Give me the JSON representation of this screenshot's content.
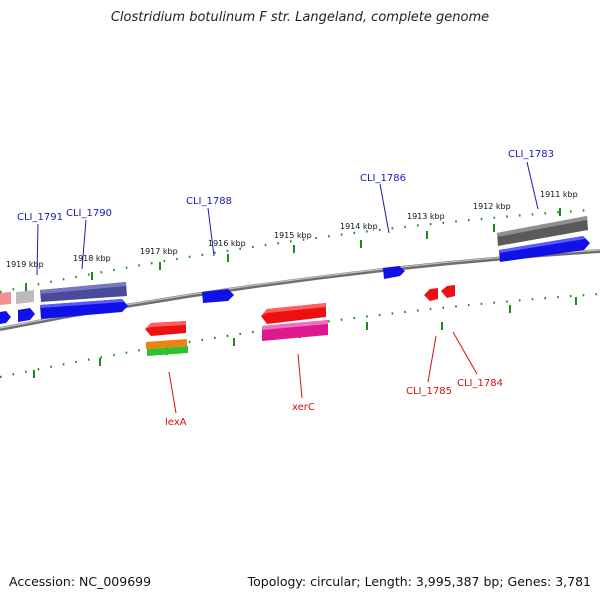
{
  "title": "Clostridium botulinum F str. Langeland, complete genome",
  "footer": {
    "accession": "Accession: NC_009699",
    "topology": "Topology: circular; Length: 3,995,387 bp; Genes: 3,781"
  },
  "kbp_labels": [
    "1911 kbp",
    "1912 kbp",
    "1913 kbp",
    "1914 kbp",
    "1915 kbp",
    "1916 kbp",
    "1917 kbp",
    "1918 kbp",
    "1919 kbp"
  ],
  "forward_gene_labels": [
    "CLI_1783",
    "CLI_1786",
    "CLI_1788",
    "CLI_1790",
    "CLI_1791"
  ],
  "reverse_gene_labels": [
    "CLI_1784",
    "CLI_1785",
    "xerC",
    "lexA"
  ],
  "colors": {
    "forward_label": "#1a1ab4",
    "reverse_label": "#d01010",
    "tick": "#1a8a1a",
    "backbone": "#8a8a8a",
    "gene_blue": "#1010e8",
    "gene_red": "#ee1010",
    "gene_magenta": "#e01890",
    "gene_orange": "#f08010",
    "gene_green": "#30c030",
    "gene_purple": "#4a4a9a",
    "gene_gray": "#5a5a5a",
    "gene_pink": "#f09090",
    "gene_lightgray": "#bbbbbb"
  }
}
